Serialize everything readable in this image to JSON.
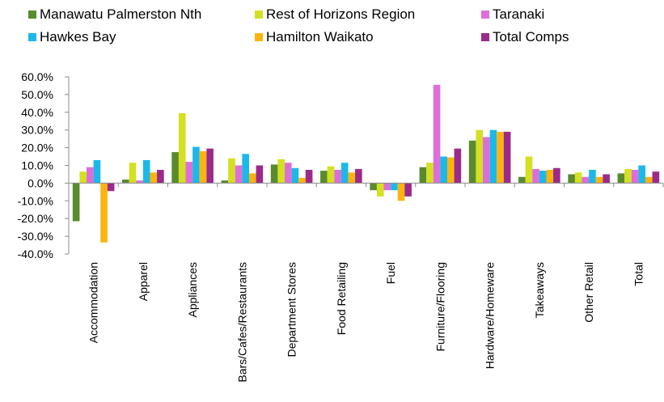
{
  "chart_data": {
    "type": "bar",
    "title": "",
    "xlabel": "",
    "ylabel": "",
    "ylim": [
      -40,
      60
    ],
    "y_ticks": [
      "60.0%",
      "50.0%",
      "40.0%",
      "30.0%",
      "20.0%",
      "10.0%",
      "0.0%",
      "-10.0%",
      "-20.0%",
      "-30.0%",
      "-40.0%"
    ],
    "y_unit": "%",
    "grid": false,
    "legend_position": "top",
    "categories": [
      "Accommodation",
      "Apparel",
      "Appliances",
      "Bars/Cafes/Restaurants",
      "Department Stores",
      "Food Retailing",
      "Fuel",
      "Furniture/Flooring",
      "Hardware/Homeware",
      "Takeaways",
      "Other Retail",
      "Total"
    ],
    "series": [
      {
        "name": "Manawatu Palmerston Nth",
        "color": "#5a8a2e",
        "values": [
          -21.5,
          2,
          17.5,
          1.5,
          10.5,
          7,
          -4,
          9,
          24,
          3.5,
          5,
          5.5
        ]
      },
      {
        "name": "Rest of Horizons Region",
        "color": "#d4e021",
        "values": [
          6.5,
          11.5,
          39.5,
          14,
          13.5,
          9.5,
          -7.5,
          11.5,
          30,
          15,
          6,
          8
        ]
      },
      {
        "name": "Taranaki",
        "color": "#dd6ed8",
        "values": [
          9,
          1.5,
          12,
          10,
          11.5,
          7.5,
          -4,
          55.5,
          26,
          8,
          3.5,
          7.5
        ]
      },
      {
        "name": "Hawkes Bay",
        "color": "#1cb8e8",
        "values": [
          13,
          13,
          20.5,
          16.5,
          8.5,
          11.5,
          -4,
          15,
          30,
          7,
          7.5,
          10
        ]
      },
      {
        "name": "Hamilton Waikato",
        "color": "#fbb40f",
        "values": [
          -33.5,
          6,
          18,
          5.5,
          3,
          6,
          -10,
          14.5,
          29,
          7.5,
          3.5,
          3.5
        ]
      },
      {
        "name": "Total Comps",
        "color": "#9b2a8a",
        "values": [
          -4.5,
          7.5,
          19.5,
          10,
          7.5,
          8,
          -7.5,
          19.5,
          29,
          8.5,
          5,
          6.5
        ]
      }
    ]
  }
}
